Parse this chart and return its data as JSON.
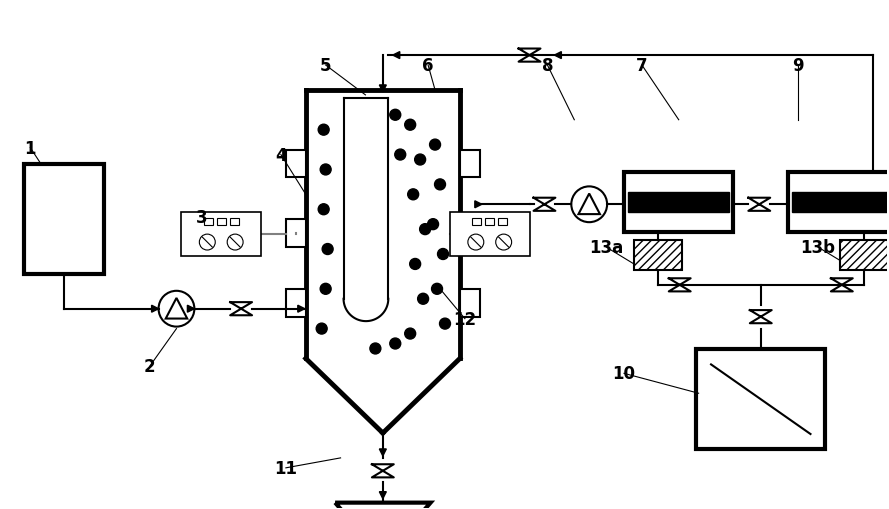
{
  "bg_color": "#ffffff",
  "line_color": "#000000",
  "lw": 1.5,
  "lw_thick": 3.0
}
